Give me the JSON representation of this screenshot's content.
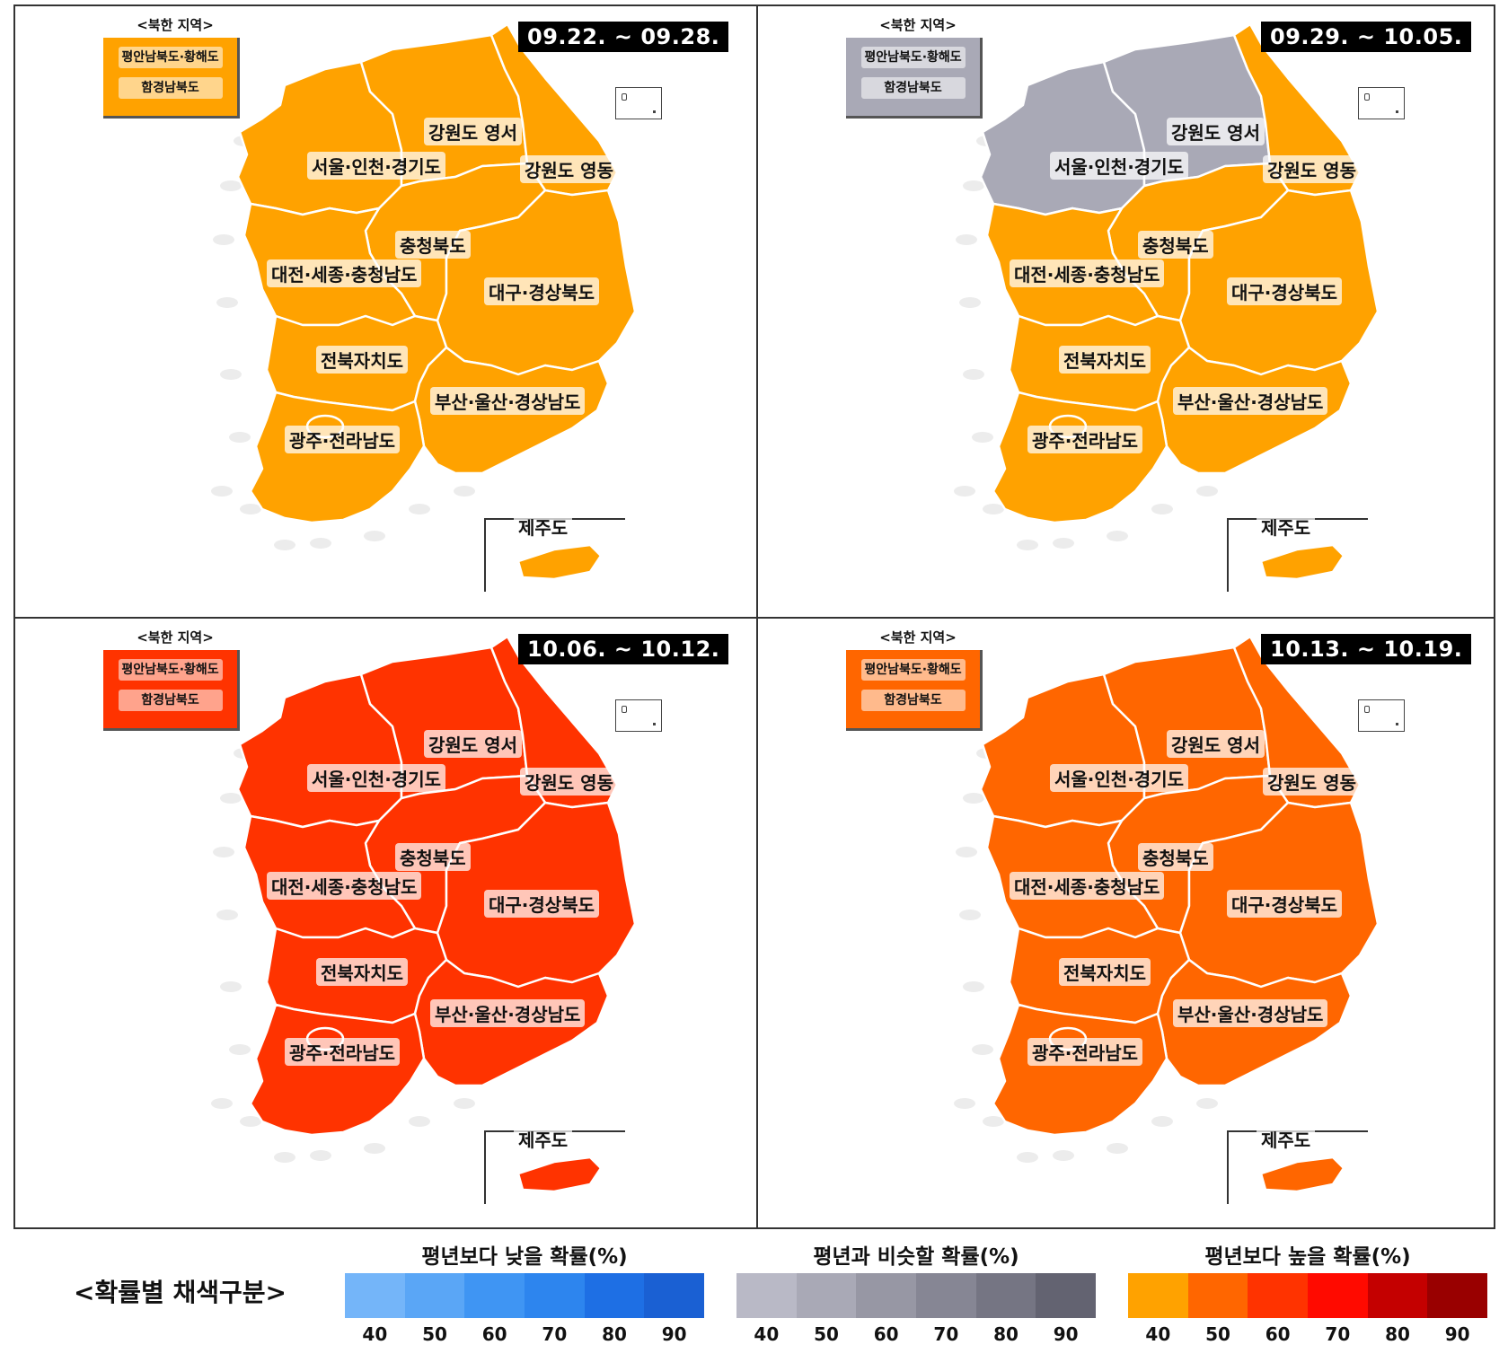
{
  "north_korea_title": "<북한 지역>",
  "north_korea_regions": [
    "평안남북도·황해도",
    "함경남북도"
  ],
  "region_labels": {
    "gangwon_west": "강원도 영서",
    "seoul": "서울·인천·경기도",
    "gangwon_east": "강원도 영동",
    "chungbuk": "충청북도",
    "daejeon": "대전·세종·충청남도",
    "daegu": "대구·경상북도",
    "jeonbuk": "전북자치도",
    "busan": "부산·울산·경상남도",
    "gwangju": "광주·전라남도",
    "jeju": "제주도"
  },
  "panels": [
    {
      "period": "09.22. ~ 09.28.",
      "north_fill": "#FFA200",
      "fills": {
        "gangwon_west": "#FFA200",
        "seoul": "#FFA200",
        "gangwon_east": "#FFA200",
        "chungbuk": "#FFA200",
        "daejeon": "#FFA200",
        "daegu": "#FFA200",
        "jeonbuk": "#FFA200",
        "busan": "#FFA200",
        "gwangju": "#FFA200",
        "jeju": "#FFA200"
      }
    },
    {
      "period": "09.29. ~ 10.05.",
      "north_fill": "#A9A9B6",
      "fills": {
        "gangwon_west": "#A9A9B6",
        "seoul": "#A9A9B6",
        "gangwon_east": "#FFA200",
        "chungbuk": "#FFA200",
        "daejeon": "#FFA200",
        "daegu": "#FFA200",
        "jeonbuk": "#FFA200",
        "busan": "#FFA200",
        "gwangju": "#FFA200",
        "jeju": "#FFA200"
      }
    },
    {
      "period": "10.06. ~ 10.12.",
      "north_fill": "#FF3300",
      "fills": {
        "gangwon_west": "#FF3300",
        "seoul": "#FF3300",
        "gangwon_east": "#FF3300",
        "chungbuk": "#FF3300",
        "daejeon": "#FF3300",
        "daegu": "#FF3300",
        "jeonbuk": "#FF3300",
        "busan": "#FF3300",
        "gwangju": "#FF3300",
        "jeju": "#FF3300"
      }
    },
    {
      "period": "10.13. ~ 10.19.",
      "north_fill": "#FF6600",
      "fills": {
        "gangwon_west": "#FF6600",
        "seoul": "#FF6600",
        "gangwon_east": "#FF6600",
        "chungbuk": "#FF6600",
        "daejeon": "#FF6600",
        "daegu": "#FF6600",
        "jeonbuk": "#FF6600",
        "busan": "#FF6600",
        "gwangju": "#FF6600",
        "jeju": "#FF6600"
      }
    }
  ],
  "legend": {
    "title": "<확률별 채색구분>",
    "ticks": [
      "40",
      "50",
      "60",
      "70",
      "80",
      "90"
    ],
    "groups": [
      {
        "name": "평년보다 낮을 확률(%)",
        "colors": [
          "#74B5F9",
          "#5AA6F6",
          "#3F95F3",
          "#2D85EE",
          "#1E6FE4",
          "#1A60D3"
        ]
      },
      {
        "name": "평년과 비슷할 확률(%)",
        "colors": [
          "#B9B9C6",
          "#A9A9B6",
          "#9797A4",
          "#868694",
          "#757583",
          "#636371"
        ]
      },
      {
        "name": "평년보다 높을 확률(%)",
        "colors": [
          "#FFA200",
          "#FF6600",
          "#FF3300",
          "#FF0A00",
          "#C40000",
          "#990000"
        ]
      }
    ]
  }
}
